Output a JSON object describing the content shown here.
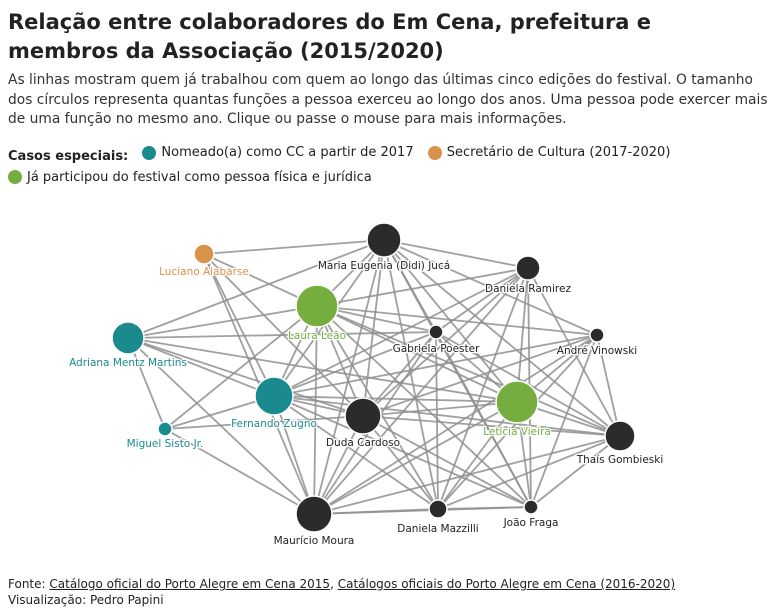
{
  "title": "Relação entre colaboradores do Em Cena, prefeitura e membros da Associação (2015/2020)",
  "subtitle": "As linhas mostram quem já trabalhou com quem ao longo das últimas cinco edições do festival. O tamanho dos círculos representa quantas funções a pessoa exerceu ao longo dos anos. Uma pessoa pode exercer mais de uma função no mesmo ano. Clique ou passe o mouse para mais informações.",
  "legend": {
    "label": "Casos especiais:",
    "items": [
      {
        "label": "Nomeado(a) como CC a partir de 2017",
        "color": "#1a8a8f"
      },
      {
        "label": "Secretário de Cultura (2017-2020)",
        "color": "#d9924a"
      },
      {
        "label": "Já participou do festival como pessoa física e jurídica",
        "color": "#76ad3f"
      }
    ]
  },
  "colors": {
    "default": "#2b2b2b",
    "cc": "#1a8a8f",
    "secretario": "#d9924a",
    "both": "#76ad3f",
    "edge": "#8f8f8f"
  },
  "nodes": [
    {
      "id": "didi",
      "label": "Maria Eugenia (Didi) Jucá",
      "category": "default",
      "size": 17
    },
    {
      "id": "daniela_r",
      "label": "Daniela Ramirez",
      "category": "default",
      "size": 12
    },
    {
      "id": "luciano",
      "label": "Luciano Alabarse",
      "category": "secretario",
      "size": 10
    },
    {
      "id": "laura",
      "label": "Laura Leão",
      "category": "both",
      "size": 21
    },
    {
      "id": "gabriela",
      "label": "Gabriela Poester",
      "category": "default",
      "size": 7
    },
    {
      "id": "andre",
      "label": "André Vinowski",
      "category": "default",
      "size": 7
    },
    {
      "id": "adriana",
      "label": "Adriana Mentz Martins",
      "category": "cc",
      "size": 16
    },
    {
      "id": "fernando",
      "label": "Fernando Zugno",
      "category": "cc",
      "size": 19
    },
    {
      "id": "miguel",
      "label": "Miguel Sisto Jr.",
      "category": "cc",
      "size": 7
    },
    {
      "id": "duda",
      "label": "Duda Cardoso",
      "category": "default",
      "size": 18
    },
    {
      "id": "leticia",
      "label": "Letícia Vieira",
      "category": "both",
      "size": 21
    },
    {
      "id": "thais",
      "label": "Thaís Gombieski",
      "category": "default",
      "size": 15
    },
    {
      "id": "mauricio",
      "label": "Maurício Moura",
      "category": "default",
      "size": 18
    },
    {
      "id": "daniela_m",
      "label": "Daniela Mazzilli",
      "category": "default",
      "size": 9
    },
    {
      "id": "joao",
      "label": "João Fraga",
      "category": "default",
      "size": 7
    }
  ],
  "edges": [
    [
      "didi",
      "daniela_r"
    ],
    [
      "didi",
      "luciano"
    ],
    [
      "didi",
      "laura"
    ],
    [
      "didi",
      "gabriela"
    ],
    [
      "didi",
      "andre"
    ],
    [
      "didi",
      "adriana"
    ],
    [
      "didi",
      "fernando"
    ],
    [
      "didi",
      "duda"
    ],
    [
      "didi",
      "leticia"
    ],
    [
      "didi",
      "thais"
    ],
    [
      "didi",
      "mauricio"
    ],
    [
      "didi",
      "daniela_m"
    ],
    [
      "didi",
      "joao"
    ],
    [
      "daniela_r",
      "laura"
    ],
    [
      "daniela_r",
      "gabriela"
    ],
    [
      "daniela_r",
      "fernando"
    ],
    [
      "daniela_r",
      "duda"
    ],
    [
      "daniela_r",
      "leticia"
    ],
    [
      "daniela_r",
      "thais"
    ],
    [
      "daniela_r",
      "mauricio"
    ],
    [
      "daniela_r",
      "daniela_m"
    ],
    [
      "daniela_r",
      "joao"
    ],
    [
      "luciano",
      "laura"
    ],
    [
      "luciano",
      "fernando"
    ],
    [
      "luciano",
      "duda"
    ],
    [
      "luciano",
      "mauricio"
    ],
    [
      "laura",
      "gabriela"
    ],
    [
      "laura",
      "adriana"
    ],
    [
      "laura",
      "fernando"
    ],
    [
      "laura",
      "duda"
    ],
    [
      "laura",
      "leticia"
    ],
    [
      "laura",
      "thais"
    ],
    [
      "laura",
      "mauricio"
    ],
    [
      "laura",
      "daniela_m"
    ],
    [
      "laura",
      "joao"
    ],
    [
      "laura",
      "miguel"
    ],
    [
      "laura",
      "andre"
    ],
    [
      "gabriela",
      "leticia"
    ],
    [
      "gabriela",
      "thais"
    ],
    [
      "gabriela",
      "duda"
    ],
    [
      "gabriela",
      "mauricio"
    ],
    [
      "gabriela",
      "fernando"
    ],
    [
      "gabriela",
      "daniela_m"
    ],
    [
      "gabriela",
      "joao"
    ],
    [
      "andre",
      "leticia"
    ],
    [
      "andre",
      "thais"
    ],
    [
      "andre",
      "duda"
    ],
    [
      "andre",
      "mauricio"
    ],
    [
      "andre",
      "joao"
    ],
    [
      "andre",
      "daniela_m"
    ],
    [
      "andre",
      "fernando"
    ],
    [
      "adriana",
      "fernando"
    ],
    [
      "adriana",
      "miguel"
    ],
    [
      "adriana",
      "mauricio"
    ],
    [
      "adriana",
      "duda"
    ],
    [
      "adriana",
      "leticia"
    ],
    [
      "adriana",
      "gabriela"
    ],
    [
      "fernando",
      "miguel"
    ],
    [
      "fernando",
      "duda"
    ],
    [
      "fernando",
      "leticia"
    ],
    [
      "fernando",
      "thais"
    ],
    [
      "fernando",
      "mauricio"
    ],
    [
      "fernando",
      "daniela_m"
    ],
    [
      "fernando",
      "joao"
    ],
    [
      "miguel",
      "mauricio"
    ],
    [
      "miguel",
      "duda"
    ],
    [
      "duda",
      "leticia"
    ],
    [
      "duda",
      "thais"
    ],
    [
      "duda",
      "mauricio"
    ],
    [
      "duda",
      "daniela_m"
    ],
    [
      "duda",
      "joao"
    ],
    [
      "leticia",
      "thais"
    ],
    [
      "leticia",
      "mauricio"
    ],
    [
      "leticia",
      "daniela_m"
    ],
    [
      "leticia",
      "joao"
    ],
    [
      "thais",
      "mauricio"
    ],
    [
      "thais",
      "daniela_m"
    ],
    [
      "thais",
      "joao"
    ],
    [
      "mauricio",
      "daniela_m"
    ],
    [
      "mauricio",
      "joao"
    ],
    [
      "daniela_m",
      "joao"
    ]
  ],
  "footer": {
    "fonte_label": "Fonte:",
    "source1": "Catálogo oficial do Porto Alegre em Cena 2015",
    "separator": ",",
    "source2": "Catálogos oficiais do Porto Alegre em Cena (2016-2020)",
    "vis": "Visualização: Pedro Papini"
  }
}
